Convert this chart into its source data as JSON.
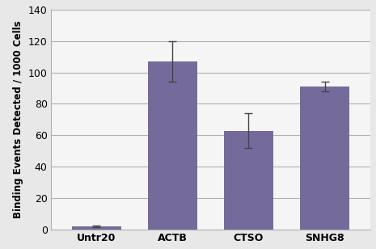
{
  "categories": [
    "Untr20",
    "ACTB",
    "CTSO",
    "SNHG8"
  ],
  "values": [
    2.0,
    107.0,
    63.0,
    91.0
  ],
  "errors": [
    0.5,
    13.0,
    11.0,
    3.0
  ],
  "bar_color": "#756B9B",
  "bar_width": 0.65,
  "ylabel": "Binding Events Detected / 1000 Cells",
  "ylim": [
    0,
    140
  ],
  "yticks": [
    0,
    20,
    40,
    60,
    80,
    100,
    120,
    140
  ],
  "grid_color": "#b0b0b0",
  "background_color": "#e8e8e8",
  "plot_bg_color": "#f5f5f5",
  "error_color": "#444444",
  "ylabel_fontsize": 8.5,
  "tick_fontsize": 9,
  "fig_width": 4.65,
  "fig_height": 3.08,
  "dpi": 100
}
